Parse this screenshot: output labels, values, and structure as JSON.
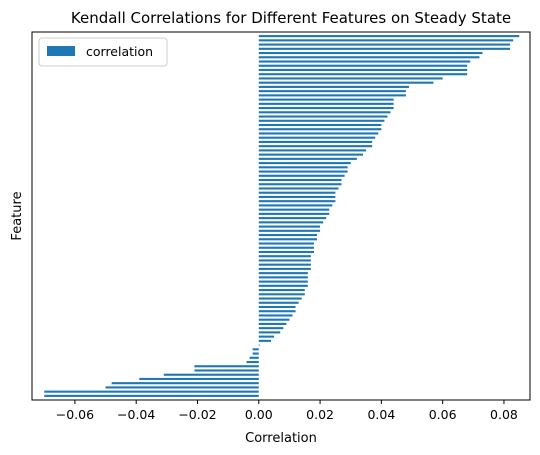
{
  "chart_data": {
    "type": "bar",
    "orientation": "horizontal",
    "title": "Kendall Correlations for Different Features on Steady State",
    "xlabel": "Correlation",
    "ylabel": "Feature",
    "xlim": [
      -0.074,
      0.0885
    ],
    "xticks": [
      -0.06,
      -0.04,
      -0.02,
      0.0,
      0.02,
      0.04,
      0.06,
      0.08
    ],
    "xtick_labels": [
      "−0.06",
      "−0.04",
      "−0.02",
      "0.00",
      "0.02",
      "0.04",
      "0.06",
      "0.08"
    ],
    "grid": false,
    "legend": {
      "position": "top-left",
      "entries": [
        "correlation"
      ]
    },
    "color": "#1f77b4",
    "series": [
      {
        "name": "correlation",
        "values": [
          0.085,
          0.083,
          0.082,
          0.082,
          0.073,
          0.072,
          0.069,
          0.068,
          0.068,
          0.068,
          0.06,
          0.057,
          0.049,
          0.048,
          0.048,
          0.044,
          0.044,
          0.044,
          0.043,
          0.042,
          0.041,
          0.04,
          0.04,
          0.039,
          0.038,
          0.037,
          0.037,
          0.035,
          0.034,
          0.032,
          0.03,
          0.029,
          0.029,
          0.028,
          0.027,
          0.027,
          0.026,
          0.025,
          0.025,
          0.025,
          0.024,
          0.023,
          0.023,
          0.022,
          0.021,
          0.02,
          0.02,
          0.019,
          0.019,
          0.018,
          0.018,
          0.018,
          0.017,
          0.017,
          0.017,
          0.017,
          0.016,
          0.016,
          0.016,
          0.016,
          0.015,
          0.015,
          0.014,
          0.013,
          0.012,
          0.012,
          0.011,
          0.01,
          0.009,
          0.008,
          0.007,
          0.005,
          0.004,
          0.0,
          -0.002,
          -0.002,
          -0.003,
          -0.004,
          -0.021,
          -0.021,
          -0.031,
          -0.039,
          -0.048,
          -0.05,
          -0.07,
          -0.07
        ]
      }
    ]
  }
}
